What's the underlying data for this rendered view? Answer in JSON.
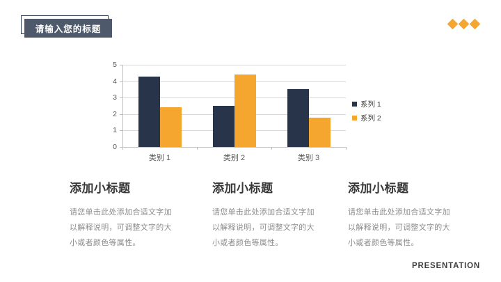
{
  "slide": {
    "title_badge": "请输入您的标题",
    "footer": "PRESENTATION",
    "accent_color": "#F5A62F",
    "navy_color": "#273449",
    "diamond_count": 3
  },
  "chart_data": {
    "type": "bar",
    "categories": [
      "类别 1",
      "类别 2",
      "类别 3"
    ],
    "series": [
      {
        "name": "系列 1",
        "color": "#273449",
        "values": [
          4.3,
          2.5,
          3.5
        ]
      },
      {
        "name": "系列 2",
        "color": "#F5A62F",
        "values": [
          2.4,
          4.4,
          1.8
        ]
      }
    ],
    "title": "",
    "xlabel": "",
    "ylabel": "",
    "ylim": [
      0,
      5
    ],
    "ytick_step": 1,
    "grid": true,
    "legend_position": "right"
  },
  "columns": [
    {
      "heading": "添加小标题",
      "body": [
        "请您单击此处添加合适文字加",
        "以解释说明，可调整文字的大",
        "小或者颜色等属性。"
      ]
    },
    {
      "heading": "添加小标题",
      "body": [
        "请您单击此处添加合适文字加",
        "以解释说明，可调整文字的大",
        "小或者颜色等属性。"
      ]
    },
    {
      "heading": "添加小标题",
      "body": [
        "请您单击此处添加合适文字加",
        "以解释说明，可调整文字的大",
        "小或者颜色等属性。"
      ]
    }
  ]
}
